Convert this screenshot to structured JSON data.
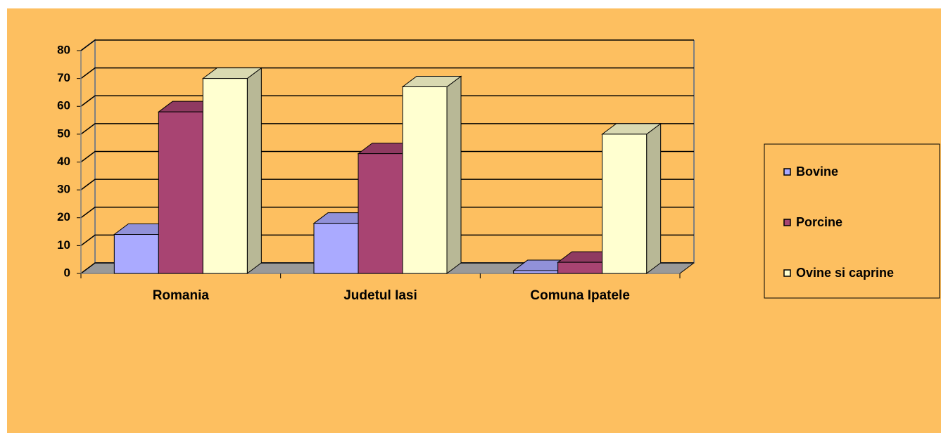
{
  "chart_data": {
    "type": "bar3d",
    "categories": [
      "Romania",
      "Judetul Iasi",
      "Comuna Ipatele"
    ],
    "series": [
      {
        "name": "Bovine",
        "color": "#aaaaff",
        "values": [
          14,
          18,
          1
        ]
      },
      {
        "name": "Porcine",
        "color": "#a84472",
        "values": [
          58,
          43,
          4
        ]
      },
      {
        "name": "Ovine si caprine",
        "color": "#ffffd0",
        "values": [
          70,
          67,
          50
        ]
      }
    ],
    "ylim": [
      0,
      80
    ],
    "yticks": [
      0,
      10,
      20,
      30,
      40,
      50,
      60,
      70,
      80
    ],
    "grid": true,
    "background": "#fdbf60",
    "floor_color": "#999999",
    "legend": "right"
  }
}
